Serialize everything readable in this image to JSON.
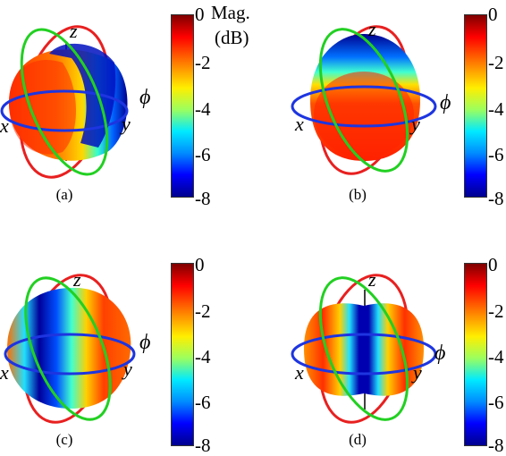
{
  "colorbar": {
    "ticks": [
      "0",
      "-2",
      "-4",
      "-6",
      "-8"
    ],
    "unit_line1": "Mag.",
    "unit_line2": "(dB)"
  },
  "axes": {
    "x": "x",
    "y": "y",
    "z": "z",
    "phi": "ϕ"
  },
  "panels": [
    {
      "caption": "(a)"
    },
    {
      "caption": "(b)"
    },
    {
      "caption": "(c)"
    },
    {
      "caption": "(d)"
    }
  ]
}
